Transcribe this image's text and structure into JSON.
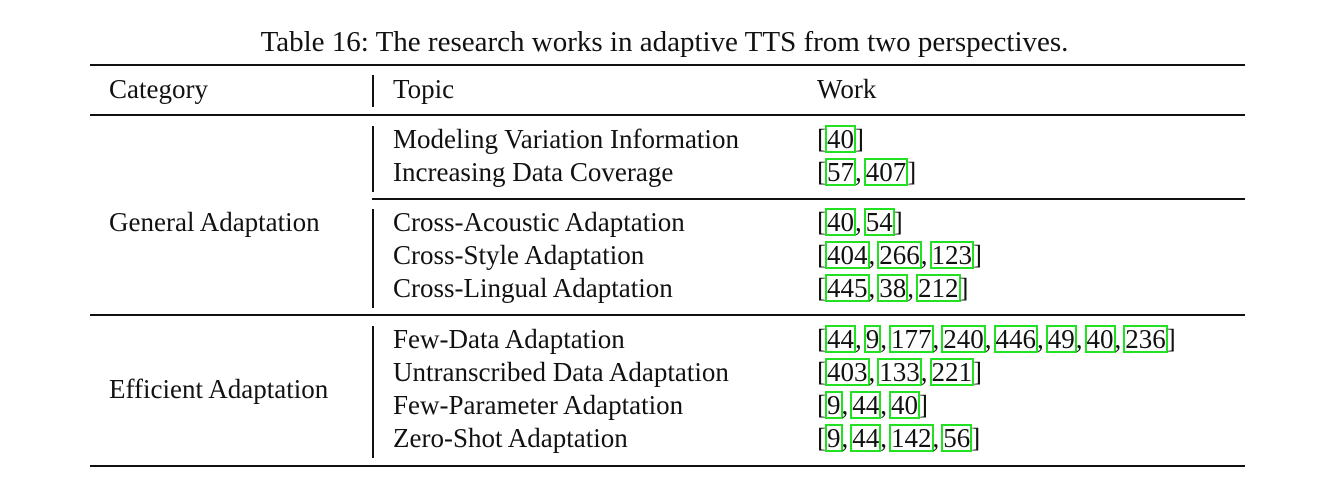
{
  "caption": "Table 16: The research works in adaptive TTS from two perspectives.",
  "headers": {
    "category": "Category",
    "topic": "Topic",
    "work": "Work"
  },
  "groups": [
    {
      "category": "General Adaptation",
      "subgroups": [
        {
          "rows": [
            {
              "topic": "Modeling Variation Information",
              "refs": [
                "40"
              ]
            },
            {
              "topic": "Increasing Data Coverage",
              "refs": [
                "57",
                "407"
              ]
            }
          ]
        },
        {
          "rows": [
            {
              "topic": "Cross-Acoustic Adaptation",
              "refs": [
                "40",
                "54"
              ]
            },
            {
              "topic": "Cross-Style Adaptation",
              "refs": [
                "404",
                "266",
                "123"
              ]
            },
            {
              "topic": "Cross-Lingual Adaptation",
              "refs": [
                "445",
                "38",
                "212"
              ]
            }
          ]
        }
      ]
    },
    {
      "category": "Efficient Adaptation",
      "subgroups": [
        {
          "rows": [
            {
              "topic": "Few-Data Adaptation",
              "refs": [
                "44",
                "9",
                "177",
                "240",
                "446",
                "49",
                "40",
                "236"
              ]
            },
            {
              "topic": "Untranscribed Data Adaptation",
              "refs": [
                "403",
                "133",
                "221"
              ]
            },
            {
              "topic": "Few-Parameter Adaptation",
              "refs": [
                "9",
                "44",
                "40"
              ]
            },
            {
              "topic": "Zero-Shot Adaptation",
              "refs": [
                "9",
                "44",
                "142",
                "56"
              ]
            }
          ]
        }
      ]
    }
  ]
}
